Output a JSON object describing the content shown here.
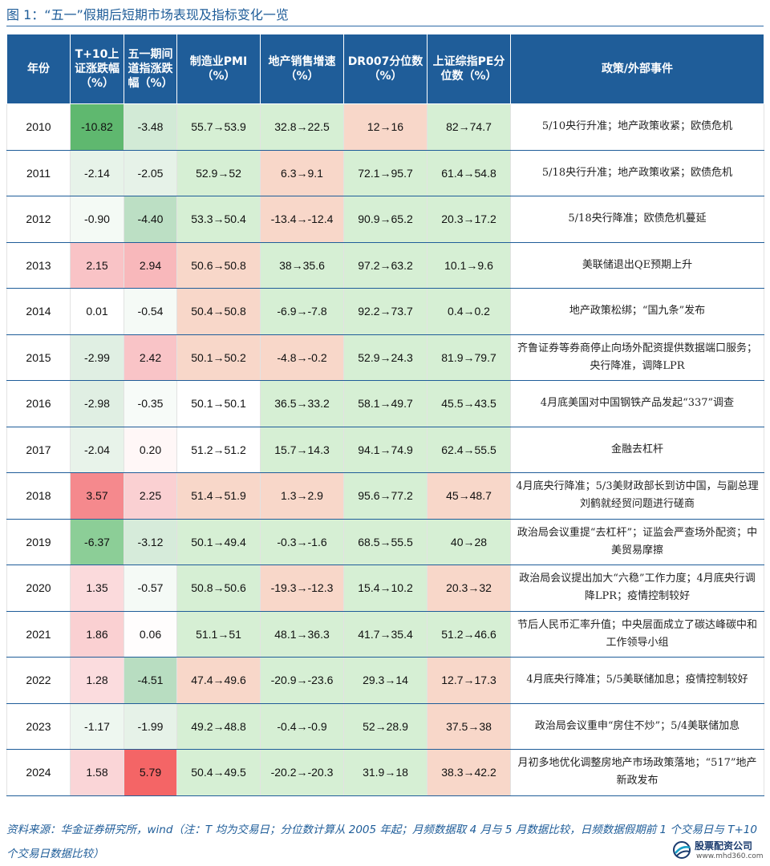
{
  "title": "图 1：“五一”假期后短期市场表现及指标变化一览",
  "headers": [
    "年份",
    "T+10上证涨跌幅（%）",
    "五一期间道指涨跌幅（%）",
    "制造业PMI（%）",
    "地产销售增速（%）",
    "DR007分位数（%）",
    "上证综指PE分位数（%）",
    "政策/外部事件"
  ],
  "rows": [
    {
      "year": "2010",
      "t10": "-10.82",
      "dow": "-3.48",
      "pmi": "55.7→53.9",
      "re": "32.8→22.5",
      "dr": "12→16",
      "pe": "82→74.7",
      "ev": "5/10央行升准；地产政策收紧；欧债危机"
    },
    {
      "year": "2011",
      "t10": "-2.14",
      "dow": "-2.05",
      "pmi": "52.9→52",
      "re": "6.3→9.1",
      "dr": "72.1→95.7",
      "pe": "61.4→54.8",
      "ev": "5/18央行升准；地产政策收紧；欧债危机"
    },
    {
      "year": "2012",
      "t10": "-0.90",
      "dow": "-4.40",
      "pmi": "53.3→50.4",
      "re": "-13.4→-12.4",
      "dr": "90.9→65.2",
      "pe": "20.3→17.2",
      "ev": "5/18央行降准；欧债危机蔓延"
    },
    {
      "year": "2013",
      "t10": "2.15",
      "dow": "2.94",
      "pmi": "50.6→50.8",
      "re": "38→35.6",
      "dr": "97.2→63.2",
      "pe": "10.1→9.6",
      "ev": "美联储退出QE预期上升"
    },
    {
      "year": "2014",
      "t10": "0.01",
      "dow": "-0.54",
      "pmi": "50.4→50.8",
      "re": "-6.9→-7.8",
      "dr": "92.2→73.7",
      "pe": "0.4→0.2",
      "ev": "地产政策松绑；“国九条”发布"
    },
    {
      "year": "2015",
      "t10": "-2.99",
      "dow": "2.42",
      "pmi": "50.1→50.2",
      "re": "-4.8→-0.2",
      "dr": "52.9→24.3",
      "pe": "81.9→79.7",
      "ev": "齐鲁证券等券商停止向场外配资提供数据端口服务；央行降准，调降LPR"
    },
    {
      "year": "2016",
      "t10": "-2.98",
      "dow": "-0.35",
      "pmi": "50.1→50.1",
      "re": "36.5→33.2",
      "dr": "58.1→49.7",
      "pe": "45.5→43.5",
      "ev": "4月底美国对中国钢铁产品发起“337”调查"
    },
    {
      "year": "2017",
      "t10": "-2.04",
      "dow": "0.20",
      "pmi": "51.2→51.2",
      "re": "15.7→14.3",
      "dr": "94.1→74.9",
      "pe": "62.4→55.5",
      "ev": "金融去杠杆"
    },
    {
      "year": "2018",
      "t10": "3.57",
      "dow": "2.25",
      "pmi": "51.4→51.9",
      "re": "1.3→2.9",
      "dr": "95.6→77.2",
      "pe": "45→48.7",
      "ev": "4月底央行降准；5/3美财政部长到访中国，与副总理刘鹤就经贸问题进行磋商"
    },
    {
      "year": "2019",
      "t10": "-6.37",
      "dow": "-3.12",
      "pmi": "50.1→49.4",
      "re": "-0.3→-1.6",
      "dr": "68.5→55.5",
      "pe": "40→28",
      "ev": "政治局会议重提“去杠杆”；证监会严查场外配资；中美贸易摩擦"
    },
    {
      "year": "2020",
      "t10": "1.35",
      "dow": "-0.57",
      "pmi": "50.8→50.6",
      "re": "-19.3→-12.3",
      "dr": "15.4→10.2",
      "pe": "20.3→32",
      "ev": "政治局会议提出加大“六稳”工作力度；4月底央行调降LPR；疫情控制较好"
    },
    {
      "year": "2021",
      "t10": "1.86",
      "dow": "0.06",
      "pmi": "51.1→51",
      "re": "48.1→36.3",
      "dr": "41.7→35.4",
      "pe": "51.2→46.6",
      "ev": "节后人民币汇率升值；中央层面成立了碳达峰碳中和工作领导小组"
    },
    {
      "year": "2022",
      "t10": "1.28",
      "dow": "-4.51",
      "pmi": "47.4→49.6",
      "re": "-20.9→-23.6",
      "dr": "29.3→14",
      "pe": "12.7→17.3",
      "ev": "4月底央行降准；5/5美联储加息；疫情控制较好"
    },
    {
      "year": "2023",
      "t10": "-1.17",
      "dow": "-1.99",
      "pmi": "49.2→48.8",
      "re": "-0.4→-0.9",
      "dr": "52→28.9",
      "pe": "37.5→38",
      "ev": "政治局会议重申“房住不炒”；5/4美联储加息"
    },
    {
      "year": "2024",
      "t10": "1.58",
      "dow": "5.79",
      "pmi": "50.4→49.5",
      "re": "-20.2→-20.3",
      "dr": "31.9→18",
      "pe": "38.3→42.2",
      "ev": "月初多地优化调整房地产市场政策落地；“517”地产新政发布"
    }
  ],
  "row_colors": [
    {
      "t10": "#5fb86f",
      "dow": "#d2ead6",
      "pmi": "#d6efd4",
      "re": "#d6efd4",
      "dr": "#f8d7c9",
      "pe": "#d6efd4"
    },
    {
      "t10": "#e7f3e9",
      "dow": "#e6f2e8",
      "pmi": "#d6efd4",
      "re": "#f8d7c9",
      "dr": "#d6efd4",
      "pe": "#d6efd4"
    },
    {
      "t10": "#f4faf5",
      "dow": "#bcdfc4",
      "pmi": "#d6efd4",
      "re": "#f8d7c9",
      "dr": "#d6efd4",
      "pe": "#d6efd4"
    },
    {
      "t10": "#f9c3c6",
      "dow": "#f8b8bb",
      "pmi": "#f8d7c9",
      "re": "#d6efd4",
      "dr": "#d6efd4",
      "pe": "#d6efd4"
    },
    {
      "t10": "#ffffff",
      "dow": "#f5faf6",
      "pmi": "#f8d7c9",
      "re": "#d6efd4",
      "dr": "#d6efd4",
      "pe": "#d6efd4"
    },
    {
      "t10": "#e0efe3",
      "dow": "#f9c4c7",
      "pmi": "#f8d7c9",
      "re": "#f8d7c9",
      "dr": "#d6efd4",
      "pe": "#d6efd4"
    },
    {
      "t10": "#e0efe3",
      "dow": "#f7fbf8",
      "pmi": "#ffffff",
      "re": "#d6efd4",
      "dr": "#d6efd4",
      "pe": "#d6efd4"
    },
    {
      "t10": "#e8f3ea",
      "dow": "#fff7f7",
      "pmi": "#ffffff",
      "re": "#d6efd4",
      "dr": "#d6efd4",
      "pe": "#d6efd4"
    },
    {
      "t10": "#f5898d",
      "dow": "#fad0d2",
      "pmi": "#f8d7c9",
      "re": "#f8d7c9",
      "dr": "#d6efd4",
      "pe": "#f8d7c9"
    },
    {
      "t10": "#8cce97",
      "dow": "#d6ebda",
      "pmi": "#d6efd4",
      "re": "#d6efd4",
      "dr": "#d6efd4",
      "pe": "#d6efd4"
    },
    {
      "t10": "#fbdadc",
      "dow": "#f5faf6",
      "pmi": "#d6efd4",
      "re": "#f8d7c9",
      "dr": "#d6efd4",
      "pe": "#f8d7c9"
    },
    {
      "t10": "#fad0d2",
      "dow": "#fffdfd",
      "pmi": "#d6efd4",
      "re": "#d6efd4",
      "dr": "#d6efd4",
      "pe": "#d6efd4"
    },
    {
      "t10": "#fbdcde",
      "dow": "#b8ddc1",
      "pmi": "#f8d7c9",
      "re": "#d6efd4",
      "dr": "#d6efd4",
      "pe": "#f8d7c9"
    },
    {
      "t10": "#eef7f0",
      "dow": "#e6f2e8",
      "pmi": "#d6efd4",
      "re": "#d6efd4",
      "dr": "#d6efd4",
      "pe": "#f8d7c9"
    },
    {
      "t10": "#fad5d7",
      "dow": "#f46566",
      "pmi": "#d6efd4",
      "re": "#d6efd4",
      "dr": "#d6efd4",
      "pe": "#f8d7c9"
    }
  ],
  "source": "资料来源：华金证券研究所，wind（注：T 均为交易日；分位数计算从 2005 年起；月频数据取 4 月与 5 月数据比较，日频数据假期前 1 个交易日与 T+10 个交易日数据比较）",
  "logo": {
    "name": "股票配资公司",
    "url": "www.mhd360.com",
    "colors": {
      "blue": "#1a3b6e",
      "teal": "#19a0c8"
    }
  }
}
